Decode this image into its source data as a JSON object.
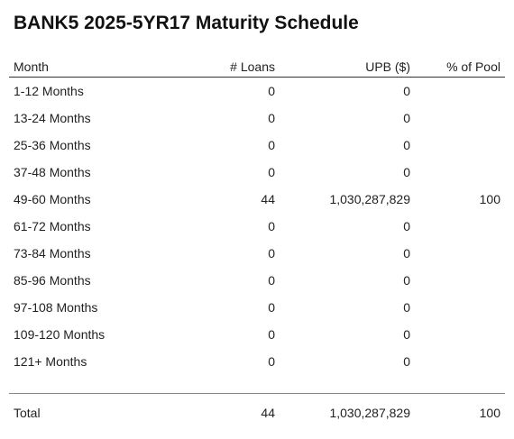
{
  "title": "BANK5 2025-5YR17 Maturity Schedule",
  "columns": [
    "Month",
    "# Loans",
    "UPB ($)",
    "% of Pool"
  ],
  "chart_data": {
    "type": "table",
    "title": "BANK5 2025-5YR17 Maturity Schedule",
    "columns": [
      "Month",
      "# Loans",
      "UPB ($)",
      "% of Pool"
    ],
    "rows": [
      [
        "1-12 Months",
        "0",
        "0",
        ""
      ],
      [
        "13-24 Months",
        "0",
        "0",
        ""
      ],
      [
        "25-36 Months",
        "0",
        "0",
        ""
      ],
      [
        "37-48 Months",
        "0",
        "0",
        ""
      ],
      [
        "49-60 Months",
        "44",
        "1,030,287,829",
        "100"
      ],
      [
        "61-72 Months",
        "0",
        "0",
        ""
      ],
      [
        "73-84 Months",
        "0",
        "0",
        ""
      ],
      [
        "85-96 Months",
        "0",
        "0",
        ""
      ],
      [
        "97-108 Months",
        "0",
        "0",
        ""
      ],
      [
        "109-120 Months",
        "0",
        "0",
        ""
      ],
      [
        "121+ Months",
        "0",
        "0",
        ""
      ]
    ],
    "total": [
      "Total",
      "44",
      "1,030,287,829",
      "100"
    ]
  }
}
